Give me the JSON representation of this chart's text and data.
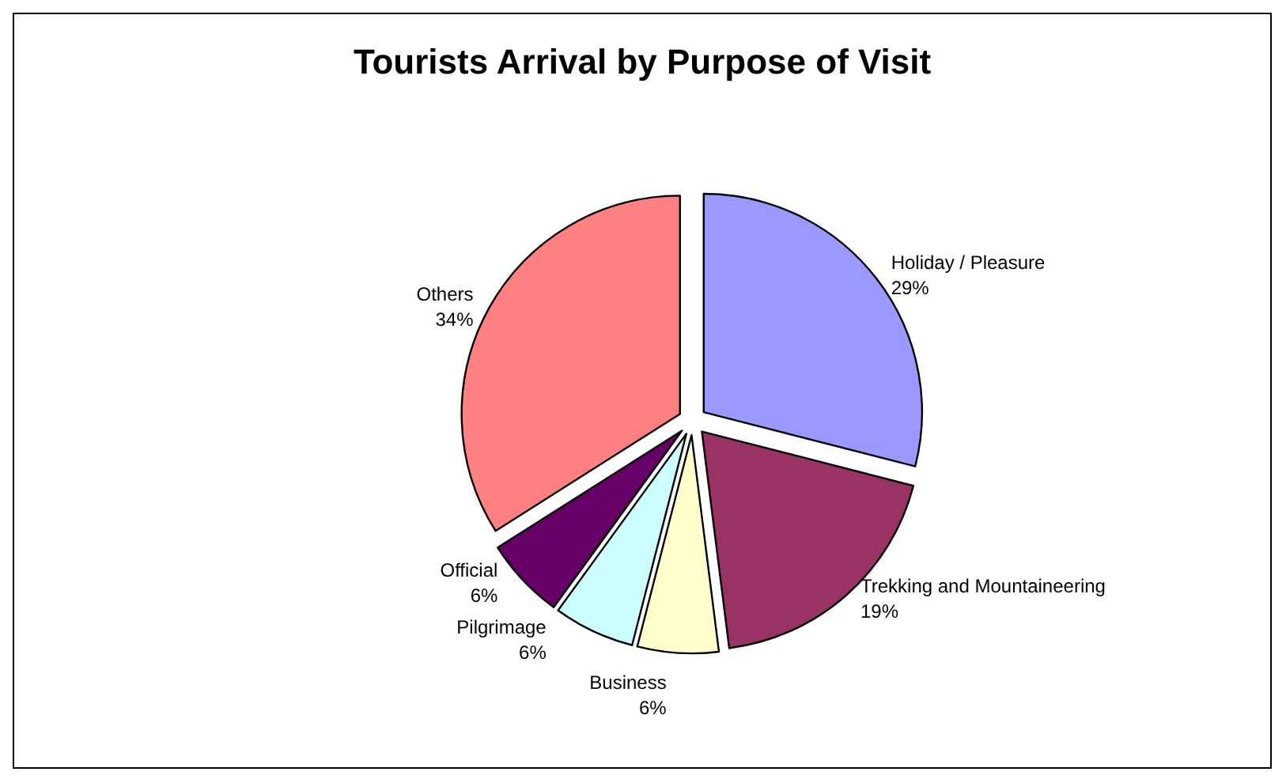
{
  "chart_data": {
    "type": "pie",
    "title": "Tourists Arrival by Purpose of Visit",
    "categories": [
      "Holiday / Pleasure",
      "Trekking and Mountaineering",
      "Business",
      "Pilgrimage",
      "Official",
      "Others"
    ],
    "values": [
      29,
      19,
      6,
      6,
      6,
      34
    ],
    "colors": [
      "#9999ff",
      "#993366",
      "#ffffcc",
      "#ccffff",
      "#660066",
      "#ff8080"
    ],
    "value_labels": [
      "29%",
      "19%",
      "6%",
      "6%",
      "6%",
      "34%"
    ],
    "legend": false
  }
}
